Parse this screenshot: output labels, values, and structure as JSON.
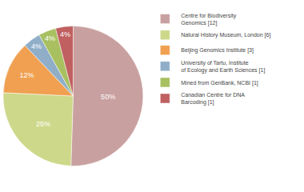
{
  "chart_data": {
    "type": "pie",
    "categories": [
      "Centre for Biodiversity\nGenomics [12]",
      "Natural History Museum, London [6]",
      "Beijing Genomics Institute [3]",
      "University of Tartu, Institute\nof Ecology and Earth Sciences [1]",
      "Mined from GenBank, NCBI [1]",
      "Canadian Centre for DNA\nBarcoding [1]"
    ],
    "values": [
      50,
      25,
      12,
      4,
      4,
      4
    ],
    "value_labels": [
      "50%",
      "25%",
      "12%",
      "4%",
      "4%",
      "4%"
    ],
    "data_labels": true,
    "colors": [
      "#c9a0a0",
      "#ced88a",
      "#f0a050",
      "#90aec8",
      "#a8c060",
      "#c06060"
    ],
    "legend": "right"
  }
}
